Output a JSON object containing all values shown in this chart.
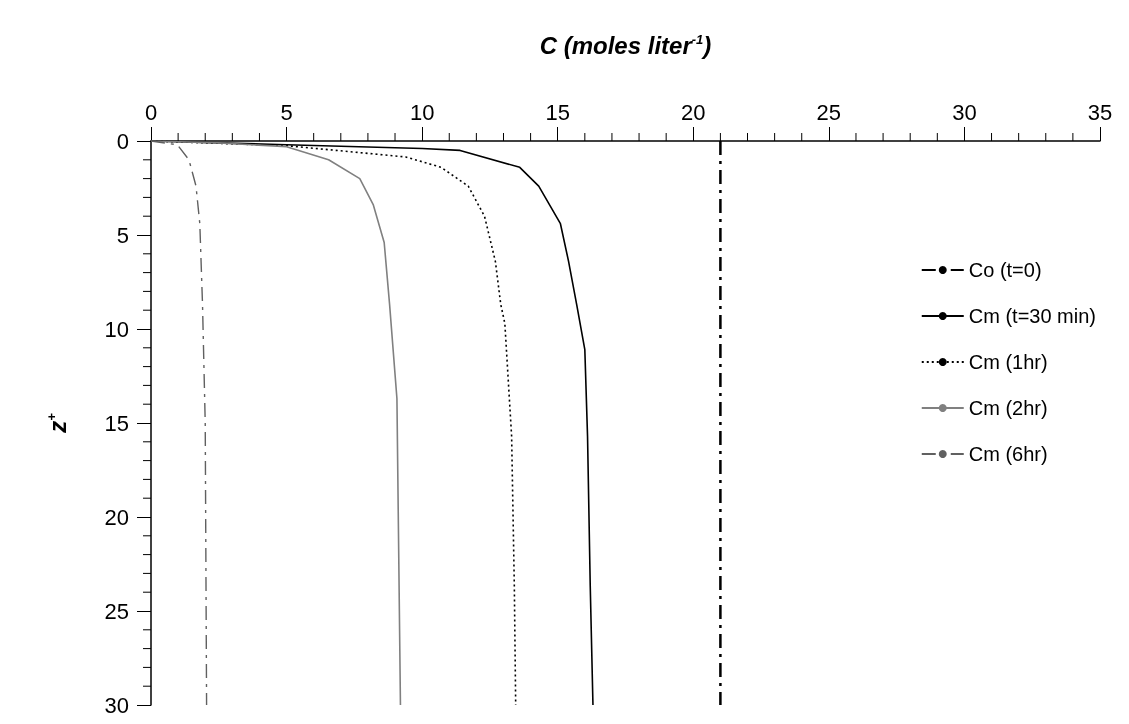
{
  "chart_data": {
    "type": "line",
    "xlabel": "C (moles liter$^{-1}$)",
    "ylabel": "z$^{+}$",
    "xlim": [
      0,
      35
    ],
    "xticks": [
      0,
      5,
      10,
      15,
      20,
      25,
      30,
      35
    ],
    "ylim": [
      30,
      0
    ],
    "yticks": [
      0,
      5,
      10,
      15,
      20,
      25,
      30
    ],
    "grid": false,
    "legend": "right",
    "marker": "none",
    "series": [
      {
        "name": "Co (t=0)",
        "color": "#000000",
        "line_style": "dashed",
        "x": [
          21,
          21
        ],
        "values": [
          0,
          30
        ]
      },
      {
        "name": "Cm (t=30 min)",
        "color": "#000000",
        "line_style": "solid",
        "x": [
          0,
          5,
          10,
          11.4,
          13.6,
          14.3,
          15.1,
          15.4,
          15.7,
          16.0,
          16.1,
          16.2,
          16.3
        ],
        "values": [
          0,
          0.2,
          0.4,
          0.5,
          1.4,
          2.4,
          4.4,
          6.4,
          8.7,
          11.1,
          15.7,
          23.7,
          30
        ]
      },
      {
        "name": "Cm (1hr)",
        "color": "#000000",
        "line_style": "dotted",
        "x": [
          0,
          5,
          9.4,
          10.7,
          11.7,
          12.3,
          12.7,
          12.9,
          13.05,
          13.3,
          13.4,
          13.45
        ],
        "values": [
          0,
          0.25,
          0.85,
          1.4,
          2.4,
          4.0,
          6.4,
          8.7,
          9.7,
          15.7,
          23.7,
          30
        ]
      },
      {
        "name": "Cm (2hr)",
        "color": "#808080",
        "line_style": "solid",
        "x": [
          0,
          2.5,
          5,
          6.55,
          7.7,
          8.2,
          8.6,
          8.8,
          9.07,
          9.15,
          9.2
        ],
        "values": [
          0,
          0.1,
          0.3,
          1.0,
          2.0,
          3.4,
          5.4,
          8.7,
          13.7,
          23.7,
          30
        ]
      },
      {
        "name": "Cm (6hr)",
        "color": "#606060",
        "line_style": "dashed",
        "x": [
          0,
          0.97,
          1.4,
          1.66,
          1.8,
          1.9,
          2.0,
          2.05
        ],
        "values": [
          0,
          0.2,
          1.0,
          2.4,
          4.4,
          8.7,
          15,
          30
        ]
      }
    ]
  }
}
